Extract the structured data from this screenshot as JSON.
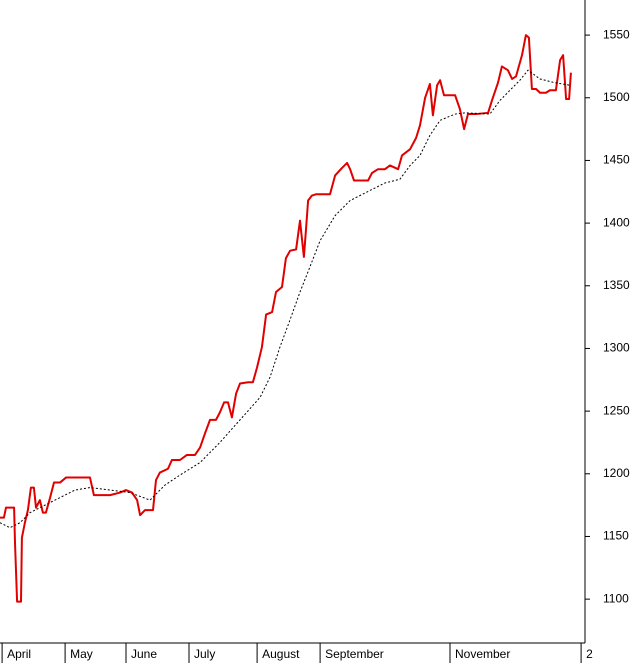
{
  "chart_data": {
    "type": "line",
    "xlim": [
      0,
      195
    ],
    "xticks": [
      {
        "value": 0.7,
        "label": "April"
      },
      {
        "value": 21.7,
        "label": "May"
      },
      {
        "value": 42,
        "label": "June"
      },
      {
        "value": 63,
        "label": "July"
      },
      {
        "value": 85.7,
        "label": "August"
      },
      {
        "value": 106.7,
        "label": "September"
      },
      {
        "value": 150,
        "label": "November"
      },
      {
        "value": 193.7,
        "label": "2"
      }
    ],
    "ylim": [
      1065,
      1578
    ],
    "yticks": [
      1100,
      1150,
      1200,
      1250,
      1300,
      1350,
      1400,
      1450,
      1500,
      1550
    ],
    "series": [
      {
        "color": "#e00000",
        "style": "solid",
        "x": [
          0,
          1.3,
          2,
          4.7,
          5,
          5.7,
          7,
          7.3,
          8.3,
          9.3,
          10.3,
          11.3,
          12,
          13.3,
          14.3,
          15.3,
          16.7,
          18,
          20,
          22,
          24,
          25.7,
          30,
          31.3,
          36.7,
          40,
          42,
          44,
          45.7,
          46.7,
          48.3,
          51,
          52,
          53.3,
          56,
          57.3,
          60,
          62.3,
          65,
          66.7,
          68.3,
          70,
          72,
          73.3,
          74.7,
          76,
          77.3,
          78.7,
          80,
          82.7,
          84.3,
          85.7,
          87.3,
          88.7,
          90.7,
          92,
          94,
          95.3,
          96.7,
          98.7,
          100,
          101.3,
          102,
          102.7,
          104,
          105.3,
          110,
          111.7,
          114,
          115.7,
          116.7,
          118,
          122.7,
          124,
          126,
          128.3,
          130,
          132.7,
          134,
          136.7,
          138.7,
          140,
          141.7,
          143.3,
          144.3,
          145.7,
          146.7,
          148,
          151.7,
          153.3,
          154.7,
          156,
          158.7,
          162.7,
          164,
          166,
          167.3,
          169.3,
          170.7,
          172,
          174,
          175.3,
          176.3,
          177.3,
          178.7,
          180,
          182,
          183.3,
          185.3,
          186.7,
          187.7,
          188.7,
          189.7,
          190.3
        ],
        "values": [
          1165,
          1165,
          1173,
          1173,
          1145,
          1098,
          1098,
          1149,
          1161,
          1171,
          1189,
          1189,
          1173,
          1179,
          1169,
          1169,
          1181,
          1193,
          1193,
          1197,
          1197,
          1197,
          1197,
          1183,
          1183,
          1185,
          1187,
          1185,
          1179,
          1167,
          1171,
          1171,
          1195,
          1201,
          1204,
          1211,
          1211,
          1215,
          1215,
          1221,
          1232,
          1243,
          1243,
          1249,
          1257,
          1257,
          1245,
          1264,
          1272,
          1273,
          1273,
          1285,
          1301,
          1327,
          1329,
          1345,
          1349,
          1372,
          1378,
          1379,
          1402,
          1373,
          1395,
          1418,
          1422,
          1423,
          1423,
          1438,
          1444,
          1448,
          1443,
          1434,
          1434,
          1440,
          1443,
          1443,
          1446,
          1443,
          1454,
          1459,
          1468,
          1478,
          1500,
          1511,
          1486,
          1510,
          1514,
          1502,
          1502,
          1491,
          1475,
          1487,
          1487,
          1488,
          1498,
          1512,
          1525,
          1522,
          1515,
          1517,
          1534,
          1550,
          1548,
          1507,
          1507,
          1504,
          1504,
          1506,
          1506,
          1530,
          1534,
          1499,
          1499,
          1520
        ]
      },
      {
        "color": "#000000",
        "style": "dotted",
        "x": [
          0,
          3.3,
          6.7,
          10,
          15,
          20,
          25,
          30,
          36.7,
          43.3,
          50,
          55,
          60,
          66.7,
          73.3,
          80,
          86.7,
          90,
          93.3,
          96.7,
          100,
          103.3,
          106.7,
          111.7,
          116.7,
          123.3,
          128.3,
          133.3,
          136.7,
          140,
          143.3,
          146.7,
          151.7,
          155,
          163.3,
          166.7,
          170,
          173.3,
          176,
          180,
          185,
          190
        ],
        "values": [
          1161,
          1157,
          1161,
          1169,
          1175,
          1181,
          1187,
          1189,
          1187,
          1185,
          1179,
          1191,
          1199,
          1209,
          1225,
          1243,
          1261,
          1277,
          1301,
          1323,
          1345,
          1365,
          1386,
          1406,
          1418,
          1426,
          1432,
          1435,
          1446,
          1454,
          1470,
          1482,
          1487,
          1488,
          1487,
          1498,
          1506,
          1514,
          1522,
          1515,
          1512,
          1510
        ]
      }
    ]
  }
}
